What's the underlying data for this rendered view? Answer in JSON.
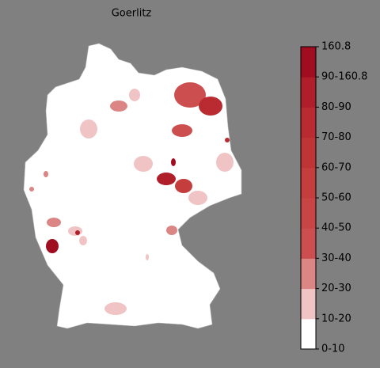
{
  "title": "Goerlitz",
  "colorbar": {
    "labels": [
      "0-10",
      "10-20",
      "20-30",
      "30-40",
      "40-50",
      "50-60",
      "60-70",
      "70-80",
      "80-90",
      "90-160.8",
      "160.8"
    ],
    "colors": [
      "#ffffff",
      "#f0c4c4",
      "#dc8585",
      "#cd4e4e",
      "#c94545",
      "#c53d3d",
      "#bf3535",
      "#b92b30",
      "#b01e2a",
      "#a10d20"
    ]
  }
}
